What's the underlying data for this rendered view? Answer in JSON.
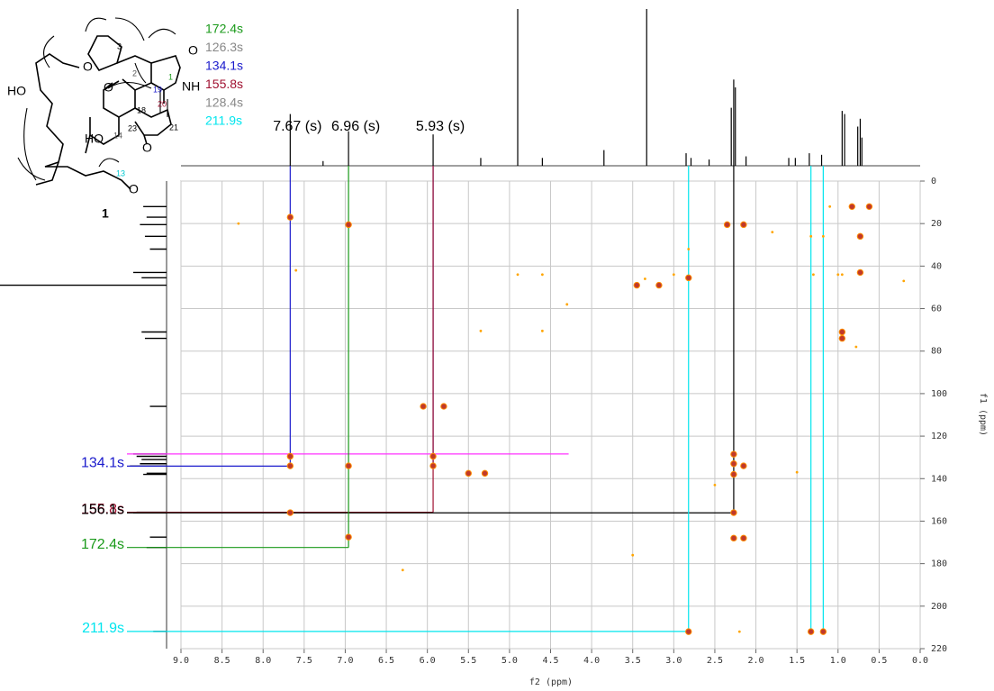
{
  "chart_data": {
    "type": "scatter",
    "x_label": "f2 (ppm)",
    "y_label": "f1 (ppm)",
    "xlim": [
      9.0,
      0.0
    ],
    "ylim": [
      0,
      220
    ],
    "xticks": [
      {
        "value": 9,
        "label": "9.0"
      },
      8.5,
      {
        "value": 8,
        "label": "8.0"
      },
      7.5,
      {
        "value": 7,
        "label": "7.0"
      },
      6.5,
      {
        "value": 6,
        "label": "6.0"
      },
      5.5,
      {
        "value": 5,
        "label": "5.0"
      },
      4.5,
      {
        "value": 4,
        "label": "4.0"
      },
      3.5,
      {
        "value": 3,
        "label": "3.0"
      },
      2.5,
      {
        "value": 2,
        "label": "2.0"
      },
      1.5,
      {
        "value": 1,
        "label": "1.0"
      },
      0.5,
      {
        "value": 0,
        "label": "0.0"
      }
    ],
    "yticks": [
      0,
      20,
      40,
      60,
      80,
      100,
      120,
      140,
      160,
      180,
      200,
      220
    ],
    "grid": true,
    "series": [
      {
        "color": "#c0392b",
        "x": [
          7.67,
          6.96,
          2.35,
          2.15,
          0.83,
          0.62,
          0.73,
          0.73,
          3.45,
          3.18,
          2.82,
          0.95,
          0.95,
          6.05,
          5.8,
          7.67,
          7.67,
          6.96,
          5.93,
          5.93,
          2.27,
          2.27,
          2.27,
          2.15,
          7.67,
          2.27,
          6.96,
          2.27,
          2.15,
          5.5,
          5.3,
          2.82,
          1.33,
          1.18
        ],
        "y": [
          17,
          20.5,
          20.5,
          20.5,
          12,
          12,
          26,
          43,
          49,
          49,
          45.5,
          71,
          74,
          106,
          106,
          129.5,
          134,
          134,
          129.5,
          134,
          128.5,
          133,
          138,
          134,
          156,
          156,
          167.5,
          168,
          168,
          137.5,
          137.5,
          212,
          212,
          212
        ]
      },
      {
        "color": "#ffa500",
        "x": [
          4.9,
          4.6,
          5.35,
          4.6,
          3.0,
          1.33,
          1.18,
          2.82,
          0.95,
          1.0,
          1.5,
          2.5,
          1.8,
          7.6,
          3.35,
          2.2,
          0.78,
          1.3,
          4.3,
          6.3,
          8.3,
          1.1,
          0.2,
          3.5
        ],
        "y": [
          44,
          44,
          70.5,
          70.5,
          44,
          26,
          26,
          32,
          44,
          44,
          137,
          143,
          24,
          42,
          46,
          212,
          78,
          44,
          58,
          183,
          20,
          12,
          47,
          176
        ]
      }
    ],
    "f2_projection": {
      "x": [
        7.67,
        7.27,
        6.96,
        5.93,
        5.35,
        4.9,
        4.6,
        3.85,
        3.33,
        2.85,
        2.79,
        2.57,
        2.3,
        2.27,
        2.25,
        2.12,
        1.6,
        1.52,
        1.35,
        1.2,
        0.95,
        0.92,
        0.76,
        0.73,
        0.71
      ],
      "heights": [
        0.33,
        0.03,
        0.22,
        0.2,
        0.05,
        1.0,
        0.05,
        0.1,
        1.0,
        0.08,
        0.05,
        0.04,
        0.37,
        0.55,
        0.5,
        0.06,
        0.05,
        0.05,
        0.08,
        0.07,
        0.35,
        0.33,
        0.25,
        0.3,
        0.18
      ]
    },
    "f1_projection": {
      "y": [
        12,
        17,
        20.5,
        26,
        32,
        43,
        45.5,
        49,
        71,
        74,
        106,
        128.4,
        129.5,
        131,
        133,
        134.1,
        137.5,
        138,
        155.8,
        156.1,
        167.5,
        172.4,
        211.9
      ],
      "heights": [
        0.14,
        0.12,
        0.16,
        0.13,
        0.1,
        0.2,
        0.15,
        1.0,
        0.15,
        0.13,
        0.1,
        0.2,
        0.18,
        0.15,
        0.16,
        0.22,
        0.12,
        0.14,
        0.18,
        0.2,
        0.1,
        0.12,
        0.08
      ]
    },
    "proton_labels": [
      {
        "value": 7.67,
        "label": "7.67 (s)"
      },
      {
        "value": 6.96,
        "label": "6.96 (s)"
      },
      {
        "value": 5.93,
        "label": "5.93 (s)"
      }
    ],
    "guides": [
      {
        "label": "134.1s",
        "value": 134.1,
        "color": "#1a1acc",
        "protons": [
          7.67,
          5.93
        ]
      },
      {
        "label": "155.8s",
        "value": 155.8,
        "color": "#a01030",
        "protons": [
          5.93
        ]
      },
      {
        "label": "156.1s",
        "value": 156.1,
        "color": "#000000",
        "protons": [
          2.27
        ]
      },
      {
        "label": "172.4s",
        "value": 172.4,
        "color": "#1a9a1a",
        "protons": [
          6.96
        ]
      },
      {
        "label": "211.9s",
        "value": 211.9,
        "color": "#00e5ee",
        "protons": [
          2.82,
          1.33,
          1.18
        ]
      }
    ],
    "marker": {
      "value": 128.4,
      "x_end": 4.28,
      "color": "#ff33ff"
    },
    "structure": {
      "compound": "1",
      "shifts": [
        {
          "label": "172.4s",
          "color": "#1a9a1a"
        },
        {
          "label": "126.3s",
          "color": "#888888"
        },
        {
          "label": "134.1s",
          "color": "#1a1acc"
        },
        {
          "label": "155.8s",
          "color": "#a01030"
        },
        {
          "label": "128.4s",
          "color": "#888888"
        },
        {
          "label": "211.9s",
          "color": "#00e5ee"
        }
      ],
      "atoms": [
        "O",
        "O",
        "O",
        "NH",
        "HO",
        "HO",
        "O",
        "O"
      ],
      "numbers": [
        "1",
        "2",
        "3",
        "19",
        "18",
        "20",
        "21",
        "23",
        "14",
        "13"
      ]
    }
  }
}
